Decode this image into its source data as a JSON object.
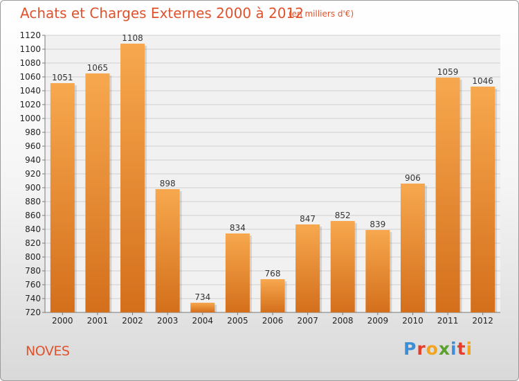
{
  "chart_data": {
    "type": "bar",
    "title": "Achats et Charges Externes 2000 à 2012",
    "subtitle": "(en milliers d'€)",
    "categories": [
      "2000",
      "2001",
      "2002",
      "2003",
      "2004",
      "2005",
      "2006",
      "2007",
      "2008",
      "2009",
      "2010",
      "2011",
      "2012"
    ],
    "values": [
      1051,
      1065,
      1108,
      898,
      734,
      834,
      768,
      847,
      852,
      839,
      906,
      1059,
      1046
    ],
    "ylim": [
      720,
      1120
    ],
    "yticks": [
      720,
      740,
      760,
      780,
      800,
      820,
      840,
      860,
      880,
      900,
      920,
      940,
      960,
      980,
      1000,
      1020,
      1040,
      1060,
      1080,
      1100,
      1120
    ],
    "grid": true,
    "legend": "none",
    "bar_color_light": "#f7a84e",
    "bar_color_dark": "#d46f1c",
    "grid_color": "#cfcfcf"
  },
  "footer": {
    "city": "NOVES",
    "logo_letters": [
      "P",
      "r",
      "o",
      "x",
      "i",
      "t",
      "i"
    ],
    "logo_colors": [
      "#3a8fd8",
      "#e63c2a",
      "#f2a51d",
      "#5aa02c",
      "#3a8fd8",
      "#e63c2a",
      "#f2a51d"
    ]
  }
}
